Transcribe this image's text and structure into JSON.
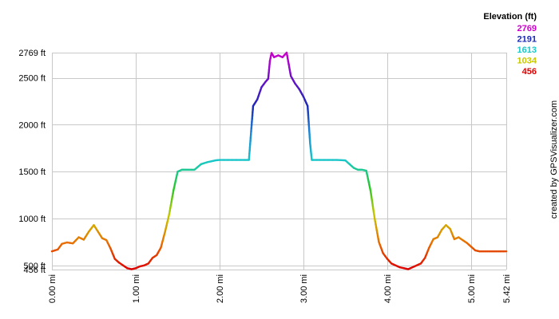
{
  "chart_data": {
    "type": "line",
    "title": "",
    "xlabel": "",
    "ylabel": "",
    "xlim": [
      0,
      5.42
    ],
    "ylim": [
      456,
      2769
    ],
    "x_unit": "mi",
    "y_unit": "ft",
    "grid": true,
    "x_ticks": [
      {
        "value": 0,
        "label": "0.00 mi"
      },
      {
        "value": 1,
        "label": "1.00 mi"
      },
      {
        "value": 2,
        "label": "2.00 mi"
      },
      {
        "value": 3,
        "label": "3.00 mi"
      },
      {
        "value": 4,
        "label": "4.00 mi"
      },
      {
        "value": 5,
        "label": "5.00 mi"
      },
      {
        "value": 5.42,
        "label": "5.42 mi"
      }
    ],
    "y_ticks": [
      {
        "value": 456,
        "label": "456 ft"
      },
      {
        "value": 500,
        "label": "500 ft"
      },
      {
        "value": 1000,
        "label": "1000 ft"
      },
      {
        "value": 1500,
        "label": "1500 ft"
      },
      {
        "value": 2000,
        "label": "2000 ft"
      },
      {
        "value": 2500,
        "label": "2500 ft"
      },
      {
        "value": 2769,
        "label": "2769 ft"
      }
    ],
    "legend": {
      "title": "Elevation (ft)",
      "position": "top-right",
      "entries": [
        {
          "label": "2769",
          "color": "#cc00cc"
        },
        {
          "label": "2191",
          "color": "#1a2ab8"
        },
        {
          "label": "1613",
          "color": "#19c8c8"
        },
        {
          "label": "1034",
          "color": "#c8c800"
        },
        {
          "label": "456",
          "color": "#dd0000"
        }
      ]
    },
    "color_scale": [
      {
        "value": 456,
        "color": "#dd0000"
      },
      {
        "value": 745,
        "color": "#e87000"
      },
      {
        "value": 1034,
        "color": "#c8c800"
      },
      {
        "value": 1324,
        "color": "#28c828"
      },
      {
        "value": 1613,
        "color": "#19c8c8"
      },
      {
        "value": 1902,
        "color": "#1a8ad8"
      },
      {
        "value": 2191,
        "color": "#1a2ab8"
      },
      {
        "value": 2480,
        "color": "#6a10c8"
      },
      {
        "value": 2769,
        "color": "#cc00cc"
      }
    ],
    "series": [
      {
        "x": [
          0,
          0.07,
          0.12,
          0.18,
          0.25,
          0.32,
          0.38,
          0.44,
          0.5,
          0.55,
          0.6,
          0.65,
          0.7,
          0.75,
          0.8,
          0.85,
          0.9,
          0.95,
          1.0,
          1.05,
          1.1,
          1.15,
          1.2,
          1.25,
          1.3,
          1.35,
          1.4,
          1.45,
          1.5,
          1.55,
          1.58,
          1.62,
          1.7,
          1.78,
          1.85,
          1.9,
          1.95,
          2.0,
          2.1,
          2.2,
          2.3,
          2.35,
          2.4,
          2.45,
          2.5,
          2.55,
          2.58,
          2.6,
          2.62,
          2.65,
          2.7,
          2.75,
          2.8,
          2.85,
          2.9,
          2.95,
          3.0,
          3.05,
          3.08,
          3.1,
          3.12,
          3.2,
          3.3,
          3.4,
          3.5,
          3.55,
          3.6,
          3.65,
          3.7,
          3.75,
          3.8,
          3.85,
          3.9,
          3.95,
          4.0,
          4.05,
          4.1,
          4.15,
          4.2,
          4.25,
          4.3,
          4.35,
          4.4,
          4.45,
          4.5,
          4.55,
          4.6,
          4.65,
          4.7,
          4.75,
          4.8,
          4.85,
          4.9,
          4.95,
          5.0,
          5.05,
          5.1,
          5.15,
          5.2,
          5.25,
          5.3,
          5.35,
          5.42
        ],
        "y": [
          650,
          670,
          730,
          745,
          735,
          800,
          775,
          860,
          930,
          860,
          790,
          770,
          680,
          570,
          530,
          500,
          470,
          460,
          470,
          490,
          500,
          520,
          580,
          610,
          690,
          860,
          1050,
          1300,
          1500,
          1520,
          1520,
          1520,
          1520,
          1580,
          1600,
          1610,
          1620,
          1625,
          1625,
          1625,
          1625,
          1625,
          2200,
          2270,
          2400,
          2460,
          2490,
          2680,
          2765,
          2720,
          2740,
          2720,
          2769,
          2520,
          2440,
          2380,
          2300,
          2200,
          1800,
          1625,
          1625,
          1625,
          1625,
          1625,
          1620,
          1580,
          1540,
          1520,
          1520,
          1510,
          1300,
          1000,
          750,
          630,
          570,
          520,
          500,
          480,
          470,
          460,
          480,
          500,
          520,
          580,
          690,
          780,
          800,
          880,
          930,
          890,
          780,
          800,
          770,
          740,
          700,
          660,
          650,
          650,
          650,
          650,
          650,
          650,
          650
        ]
      }
    ],
    "credit": "created by GPSVisualizer.com"
  }
}
